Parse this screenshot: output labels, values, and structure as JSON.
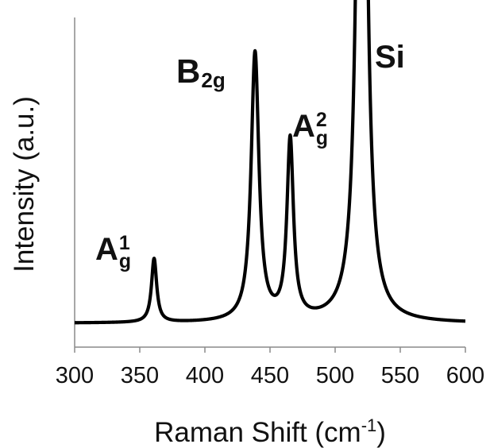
{
  "chart_data": {
    "type": "line",
    "title": "",
    "xlabel": "Raman Shift (cm",
    "xlabel_sup": "-1",
    "xlabel_close": ")",
    "ylabel": "Intensity (a.u.)",
    "xlim": [
      300,
      600
    ],
    "ylim": [
      0,
      1
    ],
    "xticks": [
      "300",
      "350",
      "400",
      "450",
      "500",
      "550",
      "600"
    ],
    "grid": false,
    "line_color": "#000000",
    "baseline": 0.0,
    "peaks": [
      {
        "label": "A",
        "sub": "g",
        "sup": "1",
        "center": 361,
        "height": 0.215,
        "width": 2.4
      },
      {
        "label": "B",
        "sub": "2g",
        "sup": "",
        "center": 438.5,
        "height": 0.905,
        "width": 3.6
      },
      {
        "label": "A",
        "sub": "g",
        "sup": "2",
        "center": 465.5,
        "height": 0.605,
        "width": 3.0
      },
      {
        "label": "Si",
        "sub": "",
        "sup": "",
        "center": 520.5,
        "height": 3.2,
        "width": 3.6
      }
    ]
  }
}
